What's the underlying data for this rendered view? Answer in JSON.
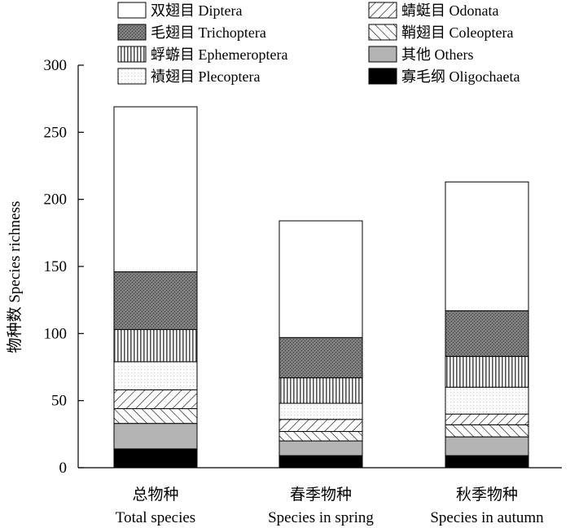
{
  "chart_data": {
    "type": "bar",
    "stacked": true,
    "title": "",
    "xlabel": "",
    "ylabel": "物种数 Species richness",
    "ylim": [
      0,
      300
    ],
    "yticks": [
      0,
      50,
      100,
      150,
      200,
      250,
      300
    ],
    "categories": [
      {
        "zh": "总物种",
        "en": "Total species"
      },
      {
        "zh": "春季物种",
        "en": "Species in spring"
      },
      {
        "zh": "秋季物种",
        "en": "Species in autumn"
      }
    ],
    "series": [
      {
        "name": "寡毛纲 Oligochaeta",
        "pattern": "solid-black",
        "values": [
          14,
          9,
          9
        ]
      },
      {
        "name": "其他 Others",
        "pattern": "solid-gray",
        "values": [
          19,
          11,
          14
        ]
      },
      {
        "name": "鞘翅目 Coleoptera",
        "pattern": "backslash-hatch",
        "values": [
          11,
          7,
          9
        ]
      },
      {
        "name": "蜻蜓目 Odonata",
        "pattern": "slash-hatch",
        "values": [
          14,
          9,
          8
        ]
      },
      {
        "name": "襀翅目 Plecoptera",
        "pattern": "light-dots",
        "values": [
          21,
          12,
          20
        ]
      },
      {
        "name": "蜉蝣目 Ephemeroptera",
        "pattern": "vertical-lines",
        "values": [
          24,
          19,
          23
        ]
      },
      {
        "name": "毛翅目 Trichoptera",
        "pattern": "dark-dots",
        "values": [
          43,
          30,
          34
        ]
      },
      {
        "name": "双翅目 Diptera",
        "pattern": "white",
        "values": [
          123,
          87,
          96
        ]
      }
    ],
    "legend": {
      "placement": "top",
      "columns": 2,
      "order": [
        "双翅目 Diptera",
        "蜻蜓目 Odonata",
        "毛翅目 Trichoptera",
        "鞘翅目 Coleoptera",
        "蜉蝣目 Ephemeroptera",
        "其他 Others",
        "襀翅目 Plecoptera",
        "寡毛纲 Oligochaeta"
      ]
    },
    "grid": false
  }
}
